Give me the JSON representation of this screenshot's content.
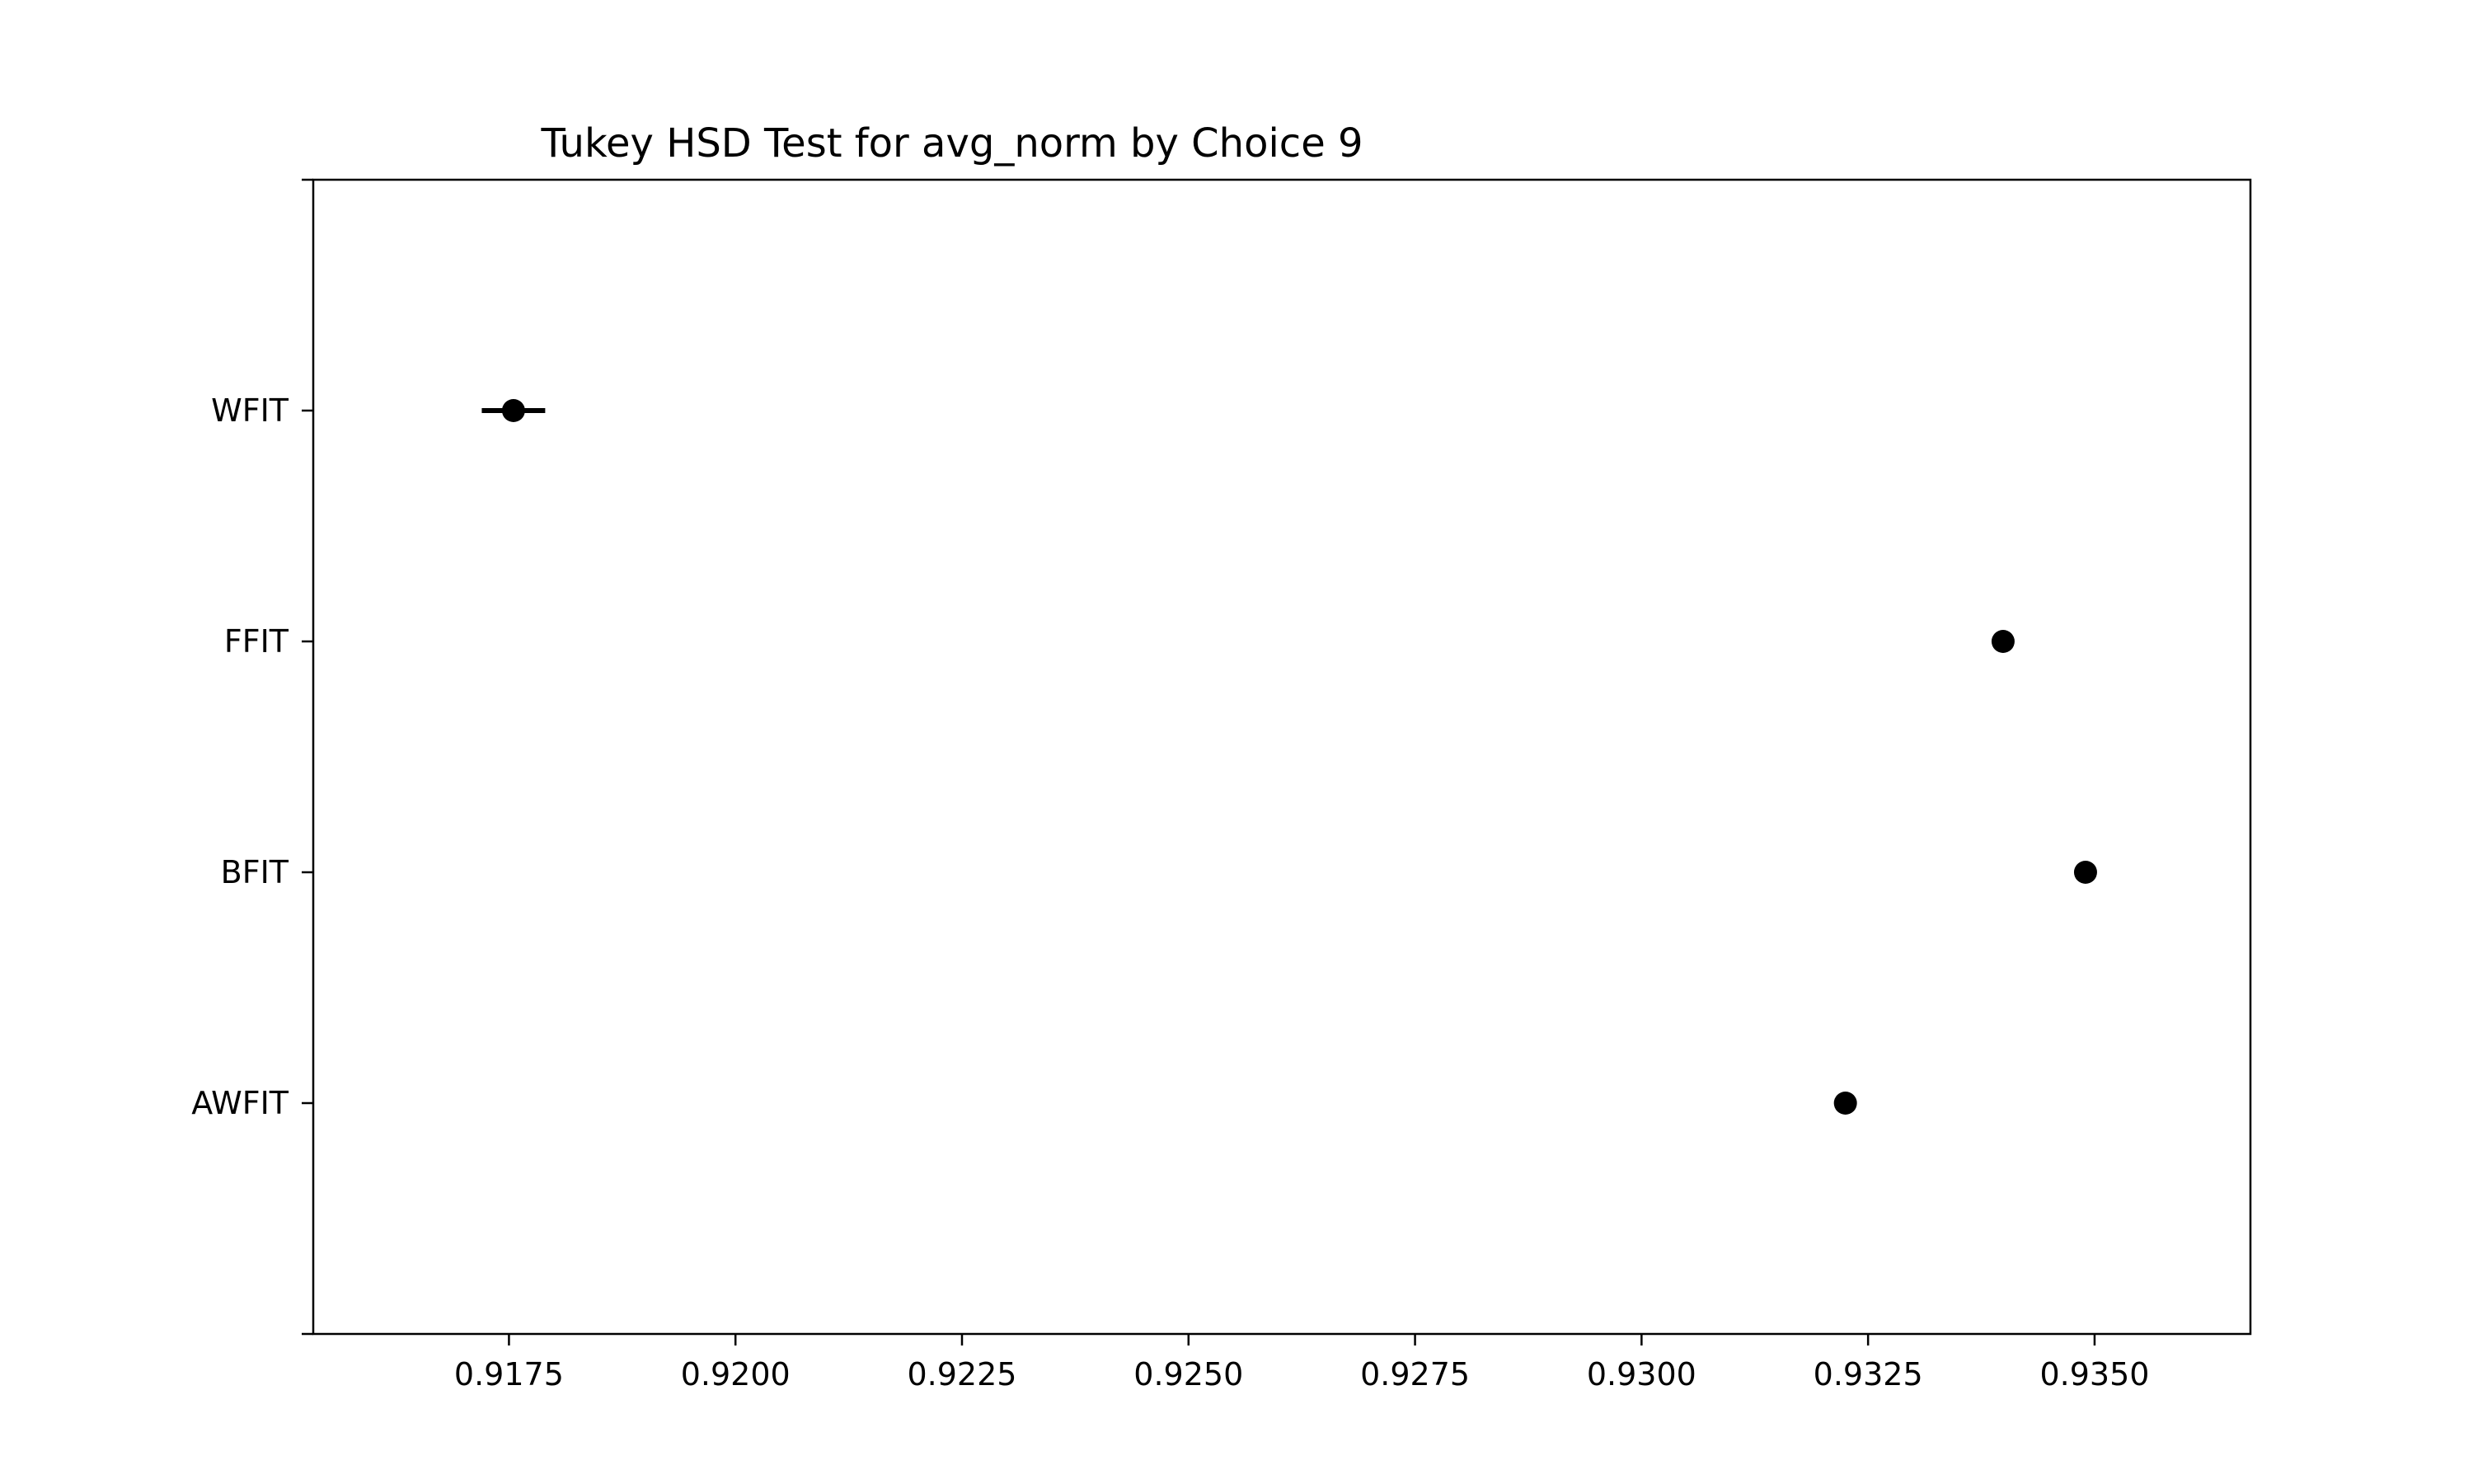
{
  "chart_data": {
    "type": "scatter",
    "title": "Tukey HSD Test for avg_norm by Choice 9",
    "xlabel": "",
    "ylabel": "",
    "groups": [
      "WFIT",
      "FFIT",
      "BFIT",
      "AWFIT"
    ],
    "series": [
      {
        "points": [
          {
            "group": "WFIT",
            "mean": 0.91755,
            "lower": 0.9172,
            "upper": 0.9179
          },
          {
            "group": "FFIT",
            "mean": 0.93399,
            "lower": 0.93394,
            "upper": 0.93404
          },
          {
            "group": "BFIT",
            "mean": 0.9349,
            "lower": 0.93486,
            "upper": 0.93494
          },
          {
            "group": "AWFIT",
            "mean": 0.93225,
            "lower": 0.93221,
            "upper": 0.93229
          }
        ]
      }
    ],
    "x_ticks": [
      0.9175,
      0.92,
      0.9225,
      0.925,
      0.9275,
      0.93,
      0.9325,
      0.935
    ],
    "x_tick_labels": [
      "0.9175",
      "0.9200",
      "0.9225",
      "0.9250",
      "0.9275",
      "0.9300",
      "0.9325",
      "0.9350"
    ],
    "xlim": [
      0.91534,
      0.93672
    ],
    "grid": false,
    "legend": "none",
    "colors": {
      "marker": "#000000",
      "axes": "#000000",
      "background": "#ffffff"
    }
  }
}
